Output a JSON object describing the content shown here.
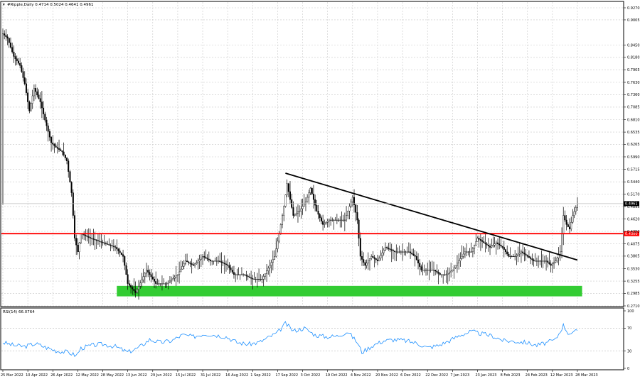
{
  "main_title": "#Ripple,Daily  0.4714 0.5024 0.4641 0.4961",
  "rsi_title": "RSI(14) 66.0764",
  "title_arrow": "▾",
  "chart_data": [
    {
      "type": "candlestick",
      "symbol": "#Ripple",
      "timeframe": "Daily",
      "title": "#Ripple,Daily  0.4714 0.5024 0.4641 0.4961",
      "ohlc_current": {
        "open": 0.4714,
        "high": 0.5024,
        "low": 0.4641,
        "close": 0.4961
      },
      "ylim": [
        0.271,
        0.927
      ],
      "y_ticks": [
        "0.9270",
        "0.9005",
        "0.8450",
        "0.8180",
        "0.7905",
        "0.7630",
        "0.7360",
        "0.7085",
        "0.6810",
        "0.6535",
        "0.6265",
        "0.5990",
        "0.5715",
        "0.5440",
        "0.5170",
        "0.4895",
        "0.4620",
        "0.4350",
        "0.4075",
        "0.3805",
        "0.3530",
        "0.3255",
        "0.2985",
        "0.2710"
      ],
      "x_ticks": [
        "25 Mar 2022",
        "10 Apr 2022",
        "26 Apr 2022",
        "12 May 2022",
        "28 May 2022",
        "13 Jun 2022",
        "29 Jun 2022",
        "15 Jul 2022",
        "31 Jul 2022",
        "16 Aug 2022",
        "1 Sep 2022",
        "17 Sep 2022",
        "3 Oct 2022",
        "19 Oct 2022",
        "4 Nov 2022",
        "20 Nov 2022",
        "6 Dec 2022",
        "22 Dec 2022",
        "7 Jan 2023",
        "23 Jan 2023",
        "8 Feb 2023",
        "24 Feb 2023",
        "12 Mar 2023",
        "28 Mar 2023"
      ],
      "x_start": "2022-03-25",
      "x_end": "2023-03-28",
      "series_points": [
        {
          "date": "2022-03-25",
          "value": 0.87
        },
        {
          "date": "2022-03-28",
          "value": 0.86
        },
        {
          "date": "2022-04-01",
          "value": 0.82
        },
        {
          "date": "2022-04-05",
          "value": 0.8
        },
        {
          "date": "2022-04-08",
          "value": 0.76
        },
        {
          "date": "2022-04-11",
          "value": 0.7
        },
        {
          "date": "2022-04-14",
          "value": 0.75
        },
        {
          "date": "2022-04-18",
          "value": 0.72
        },
        {
          "date": "2022-04-21",
          "value": 0.68
        },
        {
          "date": "2022-04-25",
          "value": 0.63
        },
        {
          "date": "2022-04-28",
          "value": 0.62
        },
        {
          "date": "2022-05-02",
          "value": 0.61
        },
        {
          "date": "2022-05-05",
          "value": 0.59
        },
        {
          "date": "2022-05-08",
          "value": 0.52
        },
        {
          "date": "2022-05-10",
          "value": 0.42
        },
        {
          "date": "2022-05-12",
          "value": 0.39
        },
        {
          "date": "2022-05-14",
          "value": 0.43
        },
        {
          "date": "2022-05-20",
          "value": 0.42
        },
        {
          "date": "2022-05-28",
          "value": 0.41
        },
        {
          "date": "2022-06-05",
          "value": 0.4
        },
        {
          "date": "2022-06-10",
          "value": 0.38
        },
        {
          "date": "2022-06-13",
          "value": 0.32
        },
        {
          "date": "2022-06-18",
          "value": 0.3
        },
        {
          "date": "2022-06-25",
          "value": 0.35
        },
        {
          "date": "2022-07-01",
          "value": 0.32
        },
        {
          "date": "2022-07-08",
          "value": 0.32
        },
        {
          "date": "2022-07-15",
          "value": 0.34
        },
        {
          "date": "2022-07-20",
          "value": 0.37
        },
        {
          "date": "2022-07-25",
          "value": 0.36
        },
        {
          "date": "2022-07-31",
          "value": 0.38
        },
        {
          "date": "2022-08-05",
          "value": 0.37
        },
        {
          "date": "2022-08-10",
          "value": 0.37
        },
        {
          "date": "2022-08-16",
          "value": 0.36
        },
        {
          "date": "2022-08-20",
          "value": 0.34
        },
        {
          "date": "2022-08-26",
          "value": 0.34
        },
        {
          "date": "2022-09-01",
          "value": 0.33
        },
        {
          "date": "2022-09-07",
          "value": 0.33
        },
        {
          "date": "2022-09-12",
          "value": 0.36
        },
        {
          "date": "2022-09-15",
          "value": 0.38
        },
        {
          "date": "2022-09-18",
          "value": 0.43
        },
        {
          "date": "2022-09-21",
          "value": 0.49
        },
        {
          "date": "2022-09-23",
          "value": 0.54
        },
        {
          "date": "2022-09-27",
          "value": 0.47
        },
        {
          "date": "2022-10-01",
          "value": 0.48
        },
        {
          "date": "2022-10-05",
          "value": 0.5
        },
        {
          "date": "2022-10-08",
          "value": 0.53
        },
        {
          "date": "2022-10-12",
          "value": 0.48
        },
        {
          "date": "2022-10-16",
          "value": 0.45
        },
        {
          "date": "2022-10-20",
          "value": 0.46
        },
        {
          "date": "2022-10-25",
          "value": 0.46
        },
        {
          "date": "2022-10-30",
          "value": 0.46
        },
        {
          "date": "2022-11-04",
          "value": 0.51
        },
        {
          "date": "2022-11-07",
          "value": 0.46
        },
        {
          "date": "2022-11-09",
          "value": 0.38
        },
        {
          "date": "2022-11-12",
          "value": 0.36
        },
        {
          "date": "2022-11-16",
          "value": 0.38
        },
        {
          "date": "2022-11-20",
          "value": 0.37
        },
        {
          "date": "2022-11-25",
          "value": 0.4
        },
        {
          "date": "2022-12-01",
          "value": 0.39
        },
        {
          "date": "2022-12-06",
          "value": 0.39
        },
        {
          "date": "2022-12-10",
          "value": 0.39
        },
        {
          "date": "2022-12-14",
          "value": 0.38
        },
        {
          "date": "2022-12-18",
          "value": 0.35
        },
        {
          "date": "2022-12-22",
          "value": 0.35
        },
        {
          "date": "2022-12-26",
          "value": 0.35
        },
        {
          "date": "2022-12-30",
          "value": 0.34
        },
        {
          "date": "2023-01-03",
          "value": 0.34
        },
        {
          "date": "2023-01-07",
          "value": 0.35
        },
        {
          "date": "2023-01-11",
          "value": 0.37
        },
        {
          "date": "2023-01-15",
          "value": 0.39
        },
        {
          "date": "2023-01-19",
          "value": 0.39
        },
        {
          "date": "2023-01-23",
          "value": 0.42
        },
        {
          "date": "2023-01-27",
          "value": 0.41
        },
        {
          "date": "2023-01-31",
          "value": 0.4
        },
        {
          "date": "2023-02-04",
          "value": 0.41
        },
        {
          "date": "2023-02-08",
          "value": 0.4
        },
        {
          "date": "2023-02-12",
          "value": 0.38
        },
        {
          "date": "2023-02-16",
          "value": 0.38
        },
        {
          "date": "2023-02-20",
          "value": 0.39
        },
        {
          "date": "2023-02-24",
          "value": 0.38
        },
        {
          "date": "2023-02-28",
          "value": 0.37
        },
        {
          "date": "2023-03-04",
          "value": 0.37
        },
        {
          "date": "2023-03-08",
          "value": 0.37
        },
        {
          "date": "2023-03-11",
          "value": 0.36
        },
        {
          "date": "2023-03-14",
          "value": 0.37
        },
        {
          "date": "2023-03-17",
          "value": 0.39
        },
        {
          "date": "2023-03-19",
          "value": 0.47
        },
        {
          "date": "2023-03-21",
          "value": 0.45
        },
        {
          "date": "2023-03-23",
          "value": 0.44
        },
        {
          "date": "2023-03-25",
          "value": 0.47
        },
        {
          "date": "2023-03-28",
          "value": 0.4961
        }
      ],
      "annotations": {
        "current_price": {
          "value": 0.4961,
          "label": "0.4961",
          "color": "#000000",
          "line_color": "#bdbdbd"
        },
        "red_level": {
          "value": 0.43,
          "label": "0.4300",
          "color": "#ff0000"
        },
        "downtrend_line": {
          "color": "#000000",
          "from": {
            "date": "2022-09-22",
            "value": 0.563
          },
          "to": {
            "date": "2023-03-28",
            "value": 0.372
          }
        },
        "support_zone": {
          "color": "#33cc33",
          "from_date": "2022-06-06",
          "to_date": "2023-03-31",
          "low": 0.292,
          "high": 0.315
        }
      },
      "colors": {
        "candle": "#000000",
        "background": "#ffffff",
        "grid": "#c8c8c8"
      }
    },
    {
      "type": "line",
      "name": "RSI(14)",
      "title": "RSI(14) 66.0764",
      "ylim": [
        0,
        100
      ],
      "y_ticks": [
        "100",
        "70",
        "30",
        "0"
      ],
      "levels": [
        70,
        30
      ],
      "current": 66.0764,
      "line_color": "#1e90ff",
      "series_points": [
        {
          "date": "2022-03-25",
          "value": 45
        },
        {
          "date": "2022-04-01",
          "value": 40
        },
        {
          "date": "2022-04-08",
          "value": 38
        },
        {
          "date": "2022-04-15",
          "value": 43
        },
        {
          "date": "2022-04-22",
          "value": 36
        },
        {
          "date": "2022-04-29",
          "value": 30
        },
        {
          "date": "2022-05-06",
          "value": 28
        },
        {
          "date": "2022-05-11",
          "value": 22
        },
        {
          "date": "2022-05-14",
          "value": 35
        },
        {
          "date": "2022-05-21",
          "value": 40
        },
        {
          "date": "2022-05-28",
          "value": 42
        },
        {
          "date": "2022-06-05",
          "value": 38
        },
        {
          "date": "2022-06-13",
          "value": 28
        },
        {
          "date": "2022-06-20",
          "value": 36
        },
        {
          "date": "2022-06-27",
          "value": 50
        },
        {
          "date": "2022-07-04",
          "value": 45
        },
        {
          "date": "2022-07-11",
          "value": 48
        },
        {
          "date": "2022-07-18",
          "value": 58
        },
        {
          "date": "2022-07-25",
          "value": 55
        },
        {
          "date": "2022-08-01",
          "value": 60
        },
        {
          "date": "2022-08-08",
          "value": 58
        },
        {
          "date": "2022-08-15",
          "value": 55
        },
        {
          "date": "2022-08-22",
          "value": 45
        },
        {
          "date": "2022-08-29",
          "value": 42
        },
        {
          "date": "2022-09-05",
          "value": 45
        },
        {
          "date": "2022-09-12",
          "value": 55
        },
        {
          "date": "2022-09-17",
          "value": 62
        },
        {
          "date": "2022-09-22",
          "value": 78
        },
        {
          "date": "2022-09-27",
          "value": 65
        },
        {
          "date": "2022-10-04",
          "value": 70
        },
        {
          "date": "2022-10-11",
          "value": 58
        },
        {
          "date": "2022-10-18",
          "value": 55
        },
        {
          "date": "2022-10-25",
          "value": 56
        },
        {
          "date": "2022-11-01",
          "value": 64
        },
        {
          "date": "2022-11-07",
          "value": 45
        },
        {
          "date": "2022-11-10",
          "value": 28
        },
        {
          "date": "2022-11-17",
          "value": 40
        },
        {
          "date": "2022-11-24",
          "value": 48
        },
        {
          "date": "2022-12-01",
          "value": 50
        },
        {
          "date": "2022-12-08",
          "value": 48
        },
        {
          "date": "2022-12-15",
          "value": 44
        },
        {
          "date": "2022-12-22",
          "value": 36
        },
        {
          "date": "2022-12-29",
          "value": 40
        },
        {
          "date": "2023-01-05",
          "value": 48
        },
        {
          "date": "2023-01-12",
          "value": 58
        },
        {
          "date": "2023-01-19",
          "value": 64
        },
        {
          "date": "2023-01-26",
          "value": 60
        },
        {
          "date": "2023-02-02",
          "value": 56
        },
        {
          "date": "2023-02-09",
          "value": 48
        },
        {
          "date": "2023-02-16",
          "value": 47
        },
        {
          "date": "2023-02-23",
          "value": 45
        },
        {
          "date": "2023-03-02",
          "value": 40
        },
        {
          "date": "2023-03-09",
          "value": 45
        },
        {
          "date": "2023-03-14",
          "value": 50
        },
        {
          "date": "2023-03-19",
          "value": 75
        },
        {
          "date": "2023-03-22",
          "value": 62
        },
        {
          "date": "2023-03-25",
          "value": 60
        },
        {
          "date": "2023-03-28",
          "value": 66.0764
        }
      ]
    }
  ]
}
